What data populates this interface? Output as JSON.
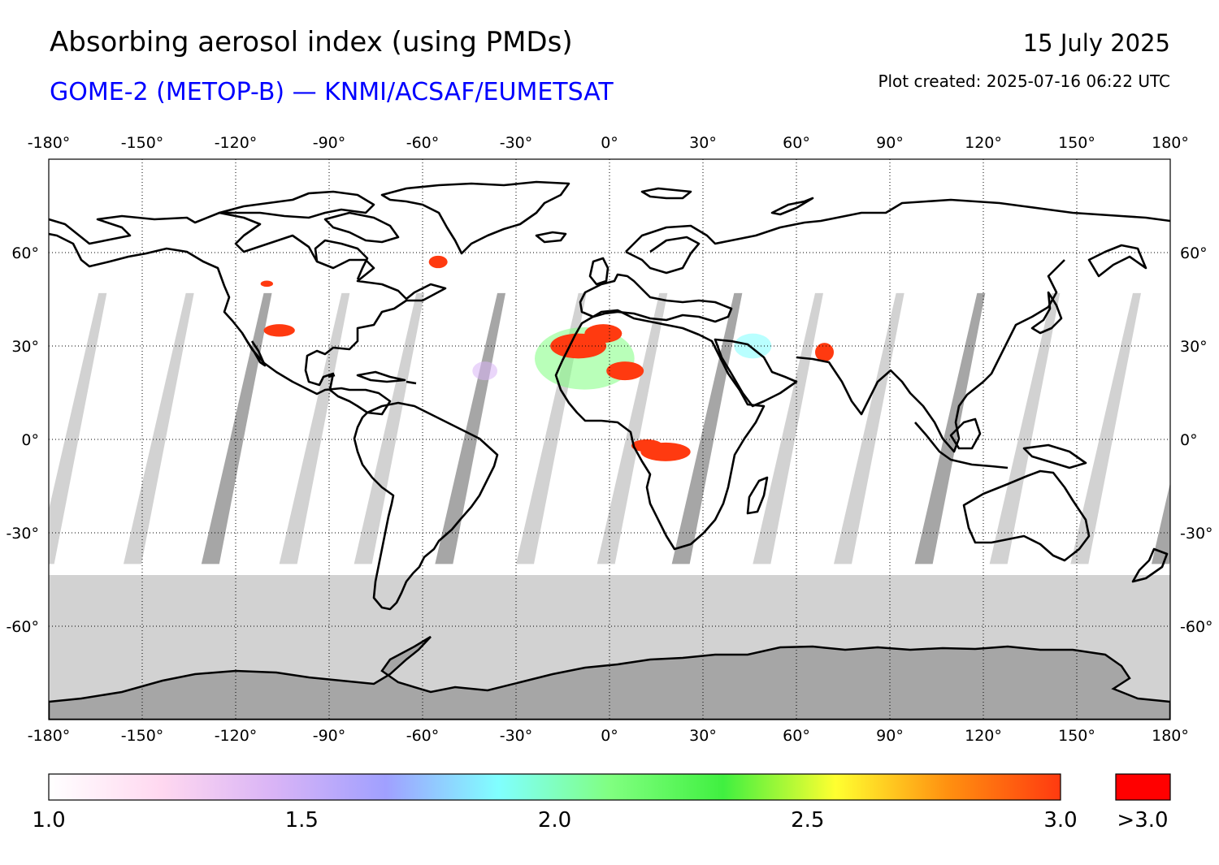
{
  "header": {
    "title": "Absorbing aerosol index (using PMDs)",
    "subtitle": "GOME-2 (METOP-B) — KNMI/ACSAF/EUMETSAT",
    "date": "15 July 2025",
    "created": "Plot created: 2025-07-16 06:22 UTC"
  },
  "colors": {
    "subtitle": "#0000ff",
    "no_data": "#d2d2d2",
    "dark_gap": "#a6a6a6",
    "coast": "#000000",
    "high": "#ff3a10",
    "over_range": "#ff0000"
  },
  "map": {
    "lon_ticks": [
      "-180°",
      "-150°",
      "-120°",
      "-90°",
      "-60°",
      "-30°",
      "0°",
      "30°",
      "60°",
      "90°",
      "120°",
      "150°",
      "180°"
    ],
    "lat_ticks": [
      "60°",
      "30°",
      "0°",
      "-30°",
      "-60°"
    ],
    "lon_values": [
      -180,
      -150,
      -120,
      -90,
      -60,
      -30,
      0,
      30,
      60,
      90,
      120,
      150,
      180
    ],
    "lat_values": [
      60,
      30,
      0,
      -30,
      -60
    ],
    "lat_range": [
      -90,
      90
    ],
    "lon_range": [
      -180,
      180
    ]
  },
  "colorbar": {
    "tick_labels": [
      "1.0",
      "1.5",
      "2.0",
      "2.5",
      "3.0"
    ],
    "tick_values": [
      1.0,
      1.5,
      2.0,
      2.5,
      3.0
    ],
    "overflow_label": ">3.0",
    "range": [
      1.0,
      3.0
    ],
    "stops": [
      "#ffffff",
      "#ffd8f0",
      "#d9b4f6",
      "#a0a0ff",
      "#80ffff",
      "#80ff80",
      "#40f040",
      "#ffff30",
      "#ff9010",
      "#ff3a10"
    ]
  },
  "aerosol_plumes": [
    {
      "region": "Sahara / Western Africa",
      "level": ">3.0"
    },
    {
      "region": "Central Africa",
      "level": ">3.0"
    },
    {
      "region": "Eastern Canada / Labrador",
      "level": ">3.0"
    },
    {
      "region": "Pakistan / NW India",
      "level": ">3.0"
    },
    {
      "region": "Western North America",
      "level": ">3.0"
    }
  ]
}
